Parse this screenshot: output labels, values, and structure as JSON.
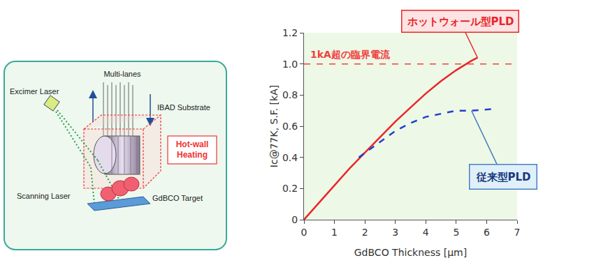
{
  "diagram": {
    "multi_lanes": "Multi-lanes",
    "excimer_laser": "Excimer Laser",
    "substrate": "IBAD Substrate",
    "hot_wall": [
      "Hot-wall",
      "Heating"
    ],
    "scanning_laser": "Scanning Laser",
    "target": "GdBCO Target"
  },
  "chart_data": {
    "type": "line",
    "x_label": "GdBCO Thickness [μm]",
    "y_label": "Ic@77K, S.F. [kA]",
    "xlim": [
      0,
      7
    ],
    "xticks": [
      0,
      1,
      2,
      3,
      4,
      5,
      6,
      7
    ],
    "ylim": [
      0,
      1.2
    ],
    "yticks": [
      0,
      0.2,
      0.4,
      0.6,
      0.8,
      {
        "value": 1,
        "label": "1.0"
      },
      1.2
    ],
    "grid": false,
    "series": [
      {
        "name": "ホットウォール型PLD",
        "color": "#e8262a",
        "line_style": "solid",
        "x": [
          0,
          0.5,
          1,
          1.5,
          2,
          2.5,
          3,
          3.5,
          4,
          4.5,
          5,
          5.5,
          5.7
        ],
        "values": [
          0,
          0.11,
          0.22,
          0.33,
          0.43,
          0.53,
          0.63,
          0.72,
          0.81,
          0.89,
          0.96,
          1.02,
          1.04
        ]
      },
      {
        "name": "従来型PLD",
        "color": "#2040d0",
        "line_style": "dash",
        "x": [
          1.8,
          2.5,
          3,
          3.5,
          4,
          4.5,
          5,
          5.5,
          6.2
        ],
        "values": [
          0.4,
          0.5,
          0.57,
          0.62,
          0.66,
          0.68,
          0.7,
          0.7,
          0.71
        ]
      }
    ],
    "threshold": {
      "value": 1,
      "label": "1kA超の臨界電流",
      "color": "#f04040",
      "line_style": "dash"
    }
  }
}
